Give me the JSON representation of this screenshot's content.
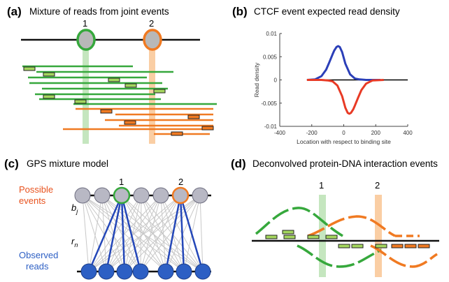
{
  "panel_a": {
    "letter": "(a)",
    "title": "Mixture of reads from joint events",
    "event_1": "1",
    "event_2": "2",
    "colors": {
      "event_1": "#36a83c",
      "event_2": "#f07a22",
      "event_node": "#b8b8b8"
    }
  },
  "panel_b": {
    "letter": "(b)",
    "title": "CTCF event expected read density",
    "chart_data": {
      "type": "line",
      "xlabel": "Location with respect to binding site",
      "ylabel": "Read density",
      "xlim": [
        -400,
        400
      ],
      "ylim": [
        -0.01,
        0.01
      ],
      "x_ticks": [
        "-400",
        "-200",
        "0",
        "200",
        "400"
      ],
      "y_ticks": [
        "0.01",
        "0.005",
        "0",
        "-0.005",
        "-0.01"
      ],
      "series": [
        {
          "color": "#2b3fb8",
          "x": [
            -230,
            -180,
            -140,
            -110,
            -90,
            -70,
            -60,
            -45,
            -35,
            -25,
            -10,
            10,
            40,
            70,
            100,
            140,
            180,
            230
          ],
          "values": [
            0,
            0.0001,
            0.0008,
            0.0022,
            0.0038,
            0.0055,
            0.0063,
            0.0071,
            0.0073,
            0.0071,
            0.006,
            0.0035,
            0.0012,
            0.0003,
            0.0001,
            0,
            0,
            0
          ]
        },
        {
          "color": "#e83a25",
          "x": [
            -230,
            -180,
            -140,
            -100,
            -70,
            -40,
            -10,
            10,
            25,
            35,
            45,
            60,
            70,
            90,
            110,
            140,
            180,
            250
          ],
          "values": [
            0,
            0,
            0,
            -0.0001,
            -0.0003,
            -0.0012,
            -0.0035,
            -0.006,
            -0.0071,
            -0.0073,
            -0.0071,
            -0.0063,
            -0.0055,
            -0.0038,
            -0.0022,
            -0.0008,
            -0.0001,
            0
          ]
        }
      ]
    }
  },
  "panel_c": {
    "letter": "(c)",
    "title": "GPS mixture model",
    "event_1": "1",
    "event_2": "2",
    "possible_events_line1": "Possible",
    "possible_events_line2": "events",
    "b_label": "b",
    "b_sub": "j",
    "r_label": "r",
    "r_sub": "n",
    "observed_reads_line1": "Observed",
    "observed_reads_line2": "reads",
    "colors": {
      "possible": "#e8521e",
      "observed": "#2d5fc4",
      "edge": "#c8c8c8",
      "strong_edge": "#2447b8"
    }
  },
  "panel_d": {
    "letter": "(d)",
    "title": "Deconvolved protein-DNA interaction events",
    "event_1": "1",
    "event_2": "2"
  }
}
